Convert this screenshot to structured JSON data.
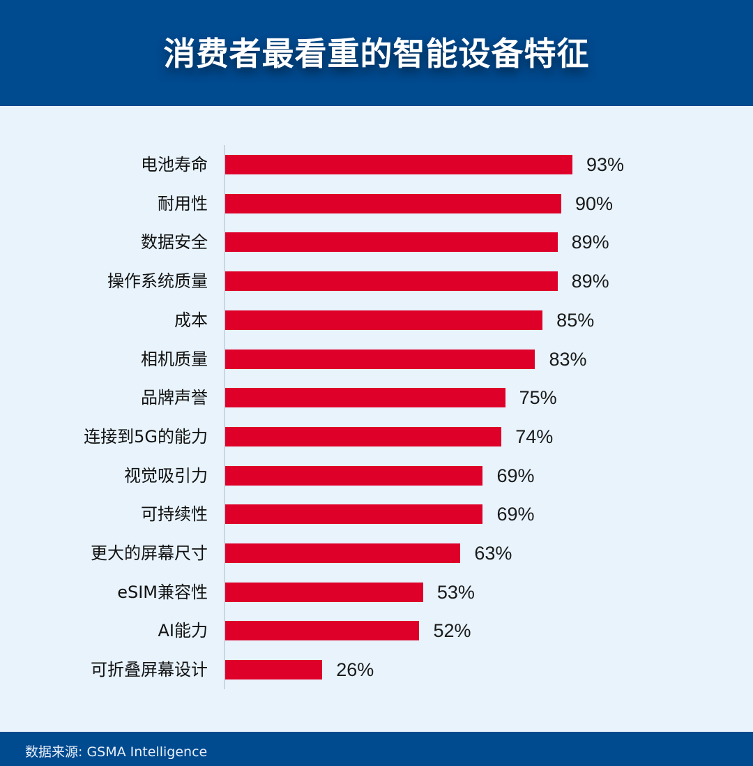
{
  "header": {
    "title": "消费者最看重的智能设备特征"
  },
  "footer": {
    "source": "数据来源: GSMA Intelligence"
  },
  "colors": {
    "header_bg": "#004a8f",
    "bar": "#de0029",
    "background": "#e8f3fc"
  },
  "rows": [
    {
      "label": "电池寿命",
      "value": 93,
      "display": "93%"
    },
    {
      "label": "耐用性",
      "value": 90,
      "display": "90%"
    },
    {
      "label": "数据安全",
      "value": 89,
      "display": "89%"
    },
    {
      "label": "操作系统质量",
      "value": 89,
      "display": "89%"
    },
    {
      "label": "成本",
      "value": 85,
      "display": "85%"
    },
    {
      "label": "相机质量",
      "value": 83,
      "display": "83%"
    },
    {
      "label": "品牌声誉",
      "value": 75,
      "display": "75%"
    },
    {
      "label": "连接到5G的能力",
      "value": 74,
      "display": "74%"
    },
    {
      "label": "视觉吸引力",
      "value": 69,
      "display": "69%"
    },
    {
      "label": "可持续性",
      "value": 69,
      "display": "69%"
    },
    {
      "label": "更大的屏幕尺寸",
      "value": 63,
      "display": "63%"
    },
    {
      "label": "eSIM兼容性",
      "value": 53,
      "display": "53%"
    },
    {
      "label": "AI能力",
      "value": 52,
      "display": "52%"
    },
    {
      "label": "可折叠屏幕设计",
      "value": 26,
      "display": "26%"
    }
  ],
  "chart_data": {
    "type": "bar",
    "orientation": "horizontal",
    "title": "消费者最看重的智能设备特征",
    "categories": [
      "电池寿命",
      "耐用性",
      "数据安全",
      "操作系统质量",
      "成本",
      "相机质量",
      "品牌声誉",
      "连接到5G的能力",
      "视觉吸引力",
      "可持续性",
      "更大的屏幕尺寸",
      "eSIM兼容性",
      "AI能力",
      "可折叠屏幕设计"
    ],
    "values": [
      93,
      90,
      89,
      89,
      85,
      83,
      75,
      74,
      69,
      69,
      63,
      53,
      52,
      26
    ],
    "unit": "%",
    "xlabel": "",
    "ylabel": "",
    "xlim": [
      0,
      100
    ],
    "grid": false,
    "legend": null,
    "data_labels": true,
    "source": "数据来源: GSMA Intelligence"
  }
}
